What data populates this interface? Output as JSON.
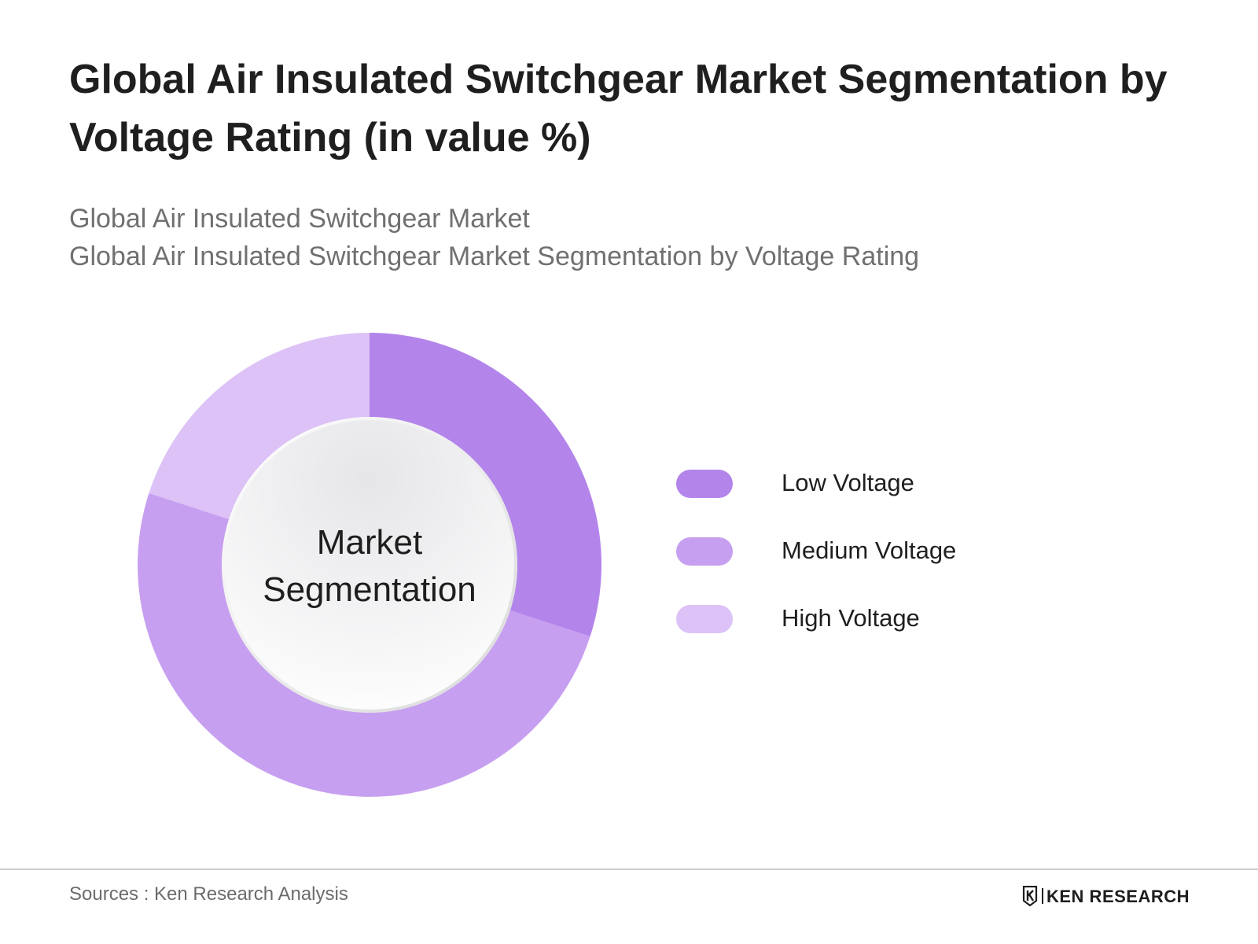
{
  "header": {
    "title": "Global Air Insulated Switchgear Market Segmentation by Voltage Rating (in value %)",
    "subtitle_line1": "Global Air Insulated Switchgear Market",
    "subtitle_line2": "Global Air Insulated Switchgear Market Segmentation by Voltage Rating"
  },
  "chart_data": {
    "type": "pie",
    "style": "donut",
    "center_label_line1": "Market",
    "center_label_line2": "Segmentation",
    "categories": [
      "Low Voltage",
      "Medium Voltage",
      "High Voltage"
    ],
    "values": [
      30,
      50,
      20
    ],
    "unit": "%",
    "colors": [
      "#b385eb",
      "#c79ff0",
      "#dcc2f6"
    ],
    "legend_position": "right"
  },
  "footer": {
    "source": "Sources : Ken Research Analysis",
    "brand": "KEN RESEARCH"
  }
}
